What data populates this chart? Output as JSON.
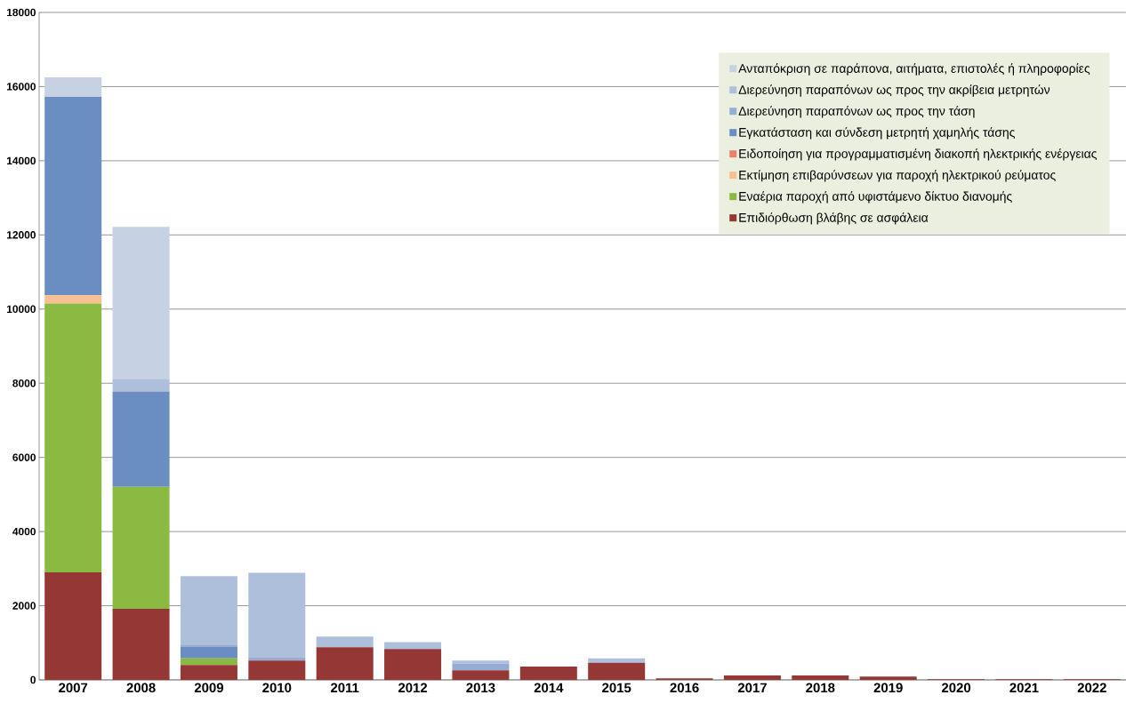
{
  "chart_data": {
    "type": "bar",
    "stacked": true,
    "categories": [
      "2007",
      "2008",
      "2009",
      "2010",
      "2011",
      "2012",
      "2013",
      "2014",
      "2015",
      "2016",
      "2017",
      "2018",
      "2019",
      "2020",
      "2021",
      "2022"
    ],
    "series": [
      {
        "name": "Επιδιόρθωση βλάβης σε ασφάλεια",
        "color": "#953735",
        "values": [
          2900,
          1920,
          400,
          520,
          880,
          830,
          260,
          360,
          460,
          40,
          120,
          120,
          90,
          20,
          20,
          20
        ]
      },
      {
        "name": "Εναέρια παροχή από υφιστάμενο δίκτυο διανομής",
        "color": "#8aba42",
        "values": [
          7250,
          3290,
          180,
          0,
          0,
          0,
          0,
          0,
          0,
          0,
          0,
          0,
          0,
          0,
          0,
          0
        ]
      },
      {
        "name": "Εκτίμηση επιβαρύνσεων για παροχή ηλεκτρικού ρεύματος",
        "color": "#f8bf90",
        "values": [
          220,
          0,
          0,
          0,
          0,
          0,
          0,
          0,
          0,
          0,
          0,
          0,
          0,
          0,
          0,
          0
        ]
      },
      {
        "name": "Ειδοποίηση για προγραμματισμένη διακοπή ηλεκτρικής ενέργειας",
        "color": "#e8836a",
        "values": [
          0,
          0,
          0,
          0,
          0,
          0,
          0,
          0,
          0,
          0,
          0,
          0,
          0,
          0,
          0,
          0
        ]
      },
      {
        "name": "Εγκατάσταση και σύνδεση μετρητή χαμηλής τάσης",
        "color": "#6a8ec2",
        "values": [
          5350,
          2570,
          320,
          0,
          0,
          0,
          0,
          0,
          0,
          0,
          0,
          0,
          0,
          0,
          0,
          0
        ]
      },
      {
        "name": "Διερεύνηση παραπόνων ως προς την τάση",
        "color": "#95acd3",
        "values": [
          0,
          0,
          50,
          80,
          0,
          0,
          180,
          0,
          0,
          0,
          0,
          0,
          0,
          0,
          0,
          0
        ]
      },
      {
        "name": "Διερεύνηση παραπόνων ως προς την ακρίβεια μετρητών",
        "color": "#aebfdc",
        "values": [
          0,
          340,
          1850,
          2290,
          290,
          190,
          80,
          0,
          120,
          0,
          0,
          0,
          0,
          0,
          0,
          0
        ]
      },
      {
        "name": "Ανταπόκριση σε παράπονα, αιτήματα,  επιστολές ή πληροφορίες",
        "color": "#c6d1e3",
        "values": [
          530,
          4100,
          0,
          0,
          0,
          0,
          0,
          0,
          0,
          0,
          0,
          0,
          0,
          0,
          0,
          0
        ]
      }
    ],
    "ylim": [
      0,
      18000
    ],
    "yticks": [
      0,
      2000,
      4000,
      6000,
      8000,
      10000,
      12000,
      14000,
      16000,
      18000
    ],
    "grid": "y",
    "legend": "top right"
  }
}
